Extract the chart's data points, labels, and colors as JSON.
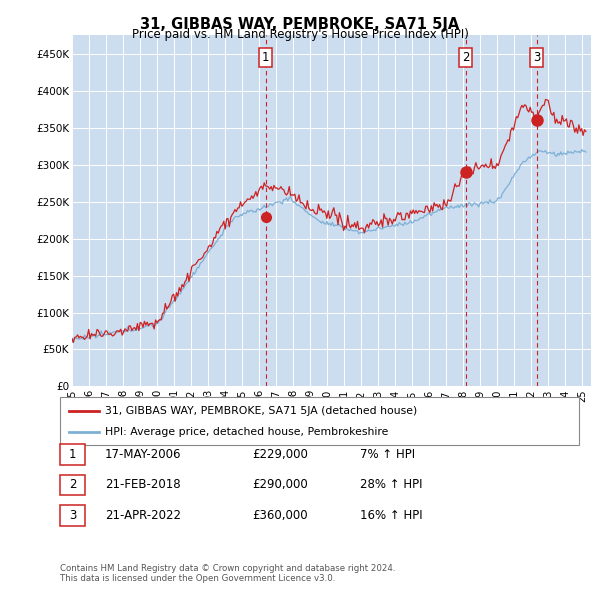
{
  "title": "31, GIBBAS WAY, PEMBROKE, SA71 5JA",
  "subtitle": "Price paid vs. HM Land Registry's House Price Index (HPI)",
  "ylabel_ticks": [
    "£0",
    "£50K",
    "£100K",
    "£150K",
    "£200K",
    "£250K",
    "£300K",
    "£350K",
    "£400K",
    "£450K"
  ],
  "ytick_values": [
    0,
    50000,
    100000,
    150000,
    200000,
    250000,
    300000,
    350000,
    400000,
    450000
  ],
  "ylim": [
    0,
    475000
  ],
  "background_color": "#dce9f5",
  "plot_bg_color": "#ccddf0",
  "grid_color": "#ffffff",
  "hpi_line_color": "#7eb0d5",
  "price_line_color": "#cc2222",
  "transactions": [
    {
      "date": 2006.38,
      "price": 229000,
      "label": "1"
    },
    {
      "date": 2018.13,
      "price": 290000,
      "label": "2"
    },
    {
      "date": 2022.31,
      "price": 360000,
      "label": "3"
    }
  ],
  "transaction_details": [
    {
      "num": "1",
      "date": "17-MAY-2006",
      "price": "£229,000",
      "change": "7% ↑ HPI"
    },
    {
      "num": "2",
      "date": "21-FEB-2018",
      "price": "£290,000",
      "change": "28% ↑ HPI"
    },
    {
      "num": "3",
      "date": "21-APR-2022",
      "price": "£360,000",
      "change": "16% ↑ HPI"
    }
  ],
  "legend_entries": [
    "31, GIBBAS WAY, PEMBROKE, SA71 5JA (detached house)",
    "HPI: Average price, detached house, Pembrokeshire"
  ],
  "footer": "Contains HM Land Registry data © Crown copyright and database right 2024.\nThis data is licensed under the Open Government Licence v3.0.",
  "xmin": 1995.0,
  "xmax": 2025.5
}
